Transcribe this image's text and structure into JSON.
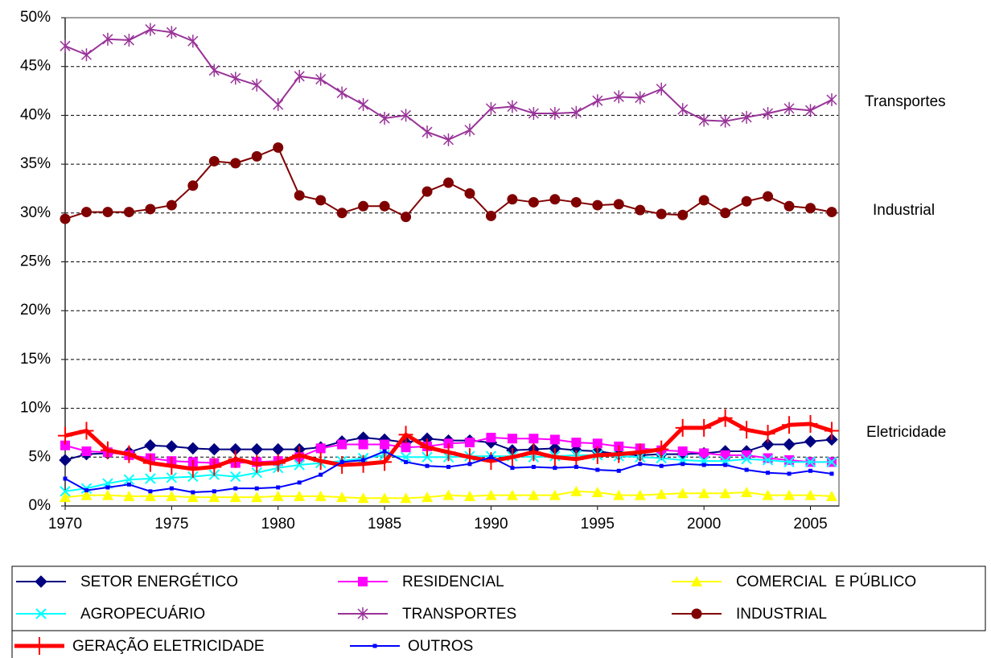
{
  "chart_data": {
    "type": "line",
    "x": [
      1970,
      1971,
      1972,
      1973,
      1974,
      1975,
      1976,
      1977,
      1978,
      1979,
      1980,
      1981,
      1982,
      1983,
      1984,
      1985,
      1986,
      1987,
      1988,
      1989,
      1990,
      1991,
      1992,
      1993,
      1994,
      1995,
      1996,
      1997,
      1998,
      1999,
      2000,
      2001,
      2002,
      2003,
      2004,
      2005,
      2006
    ],
    "xlim": [
      1970,
      2006
    ],
    "xticks": [
      1970,
      1975,
      1980,
      1985,
      1990,
      1995,
      2000,
      2005
    ],
    "ylim": [
      0,
      50
    ],
    "yticks": [
      {
        "value": 0,
        "label": "0%"
      },
      {
        "value": 5,
        "label": "5%"
      },
      {
        "value": 10,
        "label": "10%"
      },
      {
        "value": 15,
        "label": "15%"
      },
      {
        "value": 20,
        "label": "20%"
      },
      {
        "value": 25,
        "label": "25%"
      },
      {
        "value": 30,
        "label": "30%"
      },
      {
        "value": 35,
        "label": "35%"
      },
      {
        "value": 40,
        "label": "40%"
      },
      {
        "value": 45,
        "label": "45%"
      },
      {
        "value": 50,
        "label": "50%"
      }
    ],
    "grid": true,
    "annotations": [
      "Transportes",
      "Industrial",
      "Eletricidade"
    ],
    "series": [
      {
        "name": "SETOR ENERGÉTICO",
        "color": "#000080",
        "marker": "diamond",
        "values": [
          4.7,
          5.3,
          5.4,
          5.5,
          6.2,
          6.1,
          5.9,
          5.8,
          5.8,
          5.8,
          5.8,
          5.8,
          6.0,
          6.6,
          7.0,
          6.8,
          6.5,
          6.9,
          6.7,
          6.7,
          6.5,
          5.7,
          5.8,
          5.9,
          5.7,
          5.6,
          5.3,
          5.2,
          5.3,
          5.3,
          5.4,
          5.6,
          5.6,
          6.3,
          6.3,
          6.6,
          6.8
        ]
      },
      {
        "name": "RESIDENCIAL",
        "color": "#ff00ff",
        "marker": "square",
        "values": [
          6.2,
          5.6,
          5.5,
          5.2,
          4.9,
          4.6,
          4.5,
          4.4,
          4.4,
          4.5,
          4.6,
          5.0,
          5.9,
          6.3,
          6.3,
          6.3,
          6.0,
          6.1,
          6.4,
          6.5,
          7.0,
          6.9,
          6.9,
          6.8,
          6.5,
          6.4,
          6.1,
          5.9,
          5.7,
          5.6,
          5.4,
          5.2,
          5.2,
          4.9,
          4.7,
          4.5,
          4.5
        ]
      },
      {
        "name": "COMERCIAL  E PÚBLICO",
        "color": "#ffff00",
        "marker": "triangle",
        "values": [
          0.9,
          1.1,
          1.1,
          1.0,
          1.0,
          1.0,
          0.9,
          0.9,
          0.9,
          0.9,
          1.0,
          1.0,
          1.0,
          0.9,
          0.8,
          0.8,
          0.8,
          0.9,
          1.1,
          1.0,
          1.1,
          1.1,
          1.1,
          1.1,
          1.5,
          1.4,
          1.1,
          1.1,
          1.2,
          1.3,
          1.3,
          1.3,
          1.4,
          1.1,
          1.1,
          1.1,
          1.0
        ]
      },
      {
        "name": "AGROPECUÁRIO",
        "color": "#00ffff",
        "marker": "x",
        "values": [
          1.5,
          1.8,
          2.3,
          2.7,
          2.8,
          2.9,
          3.0,
          3.2,
          3.0,
          3.4,
          3.9,
          4.2,
          4.4,
          4.6,
          4.9,
          5.2,
          5.0,
          5.0,
          5.0,
          5.1,
          5.1,
          5.1,
          5.0,
          5.1,
          5.2,
          5.2,
          5.1,
          5.0,
          4.9,
          4.7,
          4.6,
          4.6,
          4.8,
          4.7,
          4.5,
          4.5,
          4.5
        ]
      },
      {
        "name": "TRANSPORTES",
        "color": "#993399",
        "marker": "asterisk",
        "values": [
          47.1,
          46.2,
          47.8,
          47.7,
          48.8,
          48.5,
          47.6,
          44.6,
          43.8,
          43.1,
          41.1,
          44.0,
          43.7,
          42.3,
          41.1,
          39.7,
          40.0,
          38.3,
          37.5,
          38.5,
          40.7,
          40.9,
          40.2,
          40.2,
          40.3,
          41.5,
          41.9,
          41.8,
          42.7,
          40.6,
          39.5,
          39.4,
          39.8,
          40.2,
          40.7,
          40.5,
          41.6
        ]
      },
      {
        "name": "INDUSTRIAL",
        "color": "#800000",
        "marker": "circle",
        "values": [
          29.4,
          30.1,
          30.1,
          30.1,
          30.4,
          30.8,
          32.8,
          35.3,
          35.1,
          35.8,
          36.7,
          31.8,
          31.3,
          30.0,
          30.7,
          30.7,
          29.6,
          32.2,
          33.1,
          32.0,
          29.7,
          31.4,
          31.1,
          31.4,
          31.1,
          30.8,
          30.9,
          30.3,
          29.9,
          29.8,
          31.3,
          30.0,
          31.2,
          31.7,
          30.7,
          30.5,
          30.1
        ]
      },
      {
        "name": "GERAÇÃO ELETRICIDADE",
        "color": "#ff0000",
        "marker": "plus",
        "line_width": 5,
        "values": [
          7.2,
          7.7,
          5.7,
          5.3,
          4.4,
          4.1,
          3.8,
          4.0,
          4.8,
          4.3,
          4.4,
          5.2,
          4.6,
          4.2,
          4.3,
          4.5,
          7.3,
          6.0,
          5.5,
          5.0,
          4.6,
          5.0,
          5.5,
          5.0,
          4.8,
          5.2,
          5.3,
          5.5,
          5.8,
          8.0,
          8.0,
          9.0,
          7.8,
          7.4,
          8.3,
          8.4,
          7.7
        ]
      },
      {
        "name": "OUTROS",
        "color": "#0000ff",
        "marker": "smallsquare",
        "values": [
          2.8,
          1.6,
          1.9,
          2.2,
          1.5,
          1.8,
          1.4,
          1.5,
          1.8,
          1.8,
          1.9,
          2.4,
          3.2,
          4.5,
          4.7,
          5.6,
          4.5,
          4.1,
          4.0,
          4.3,
          5.0,
          3.9,
          4.0,
          3.9,
          4.0,
          3.7,
          3.6,
          4.3,
          4.1,
          4.3,
          4.2,
          4.2,
          3.7,
          3.4,
          3.3,
          3.6,
          3.3
        ]
      }
    ]
  }
}
